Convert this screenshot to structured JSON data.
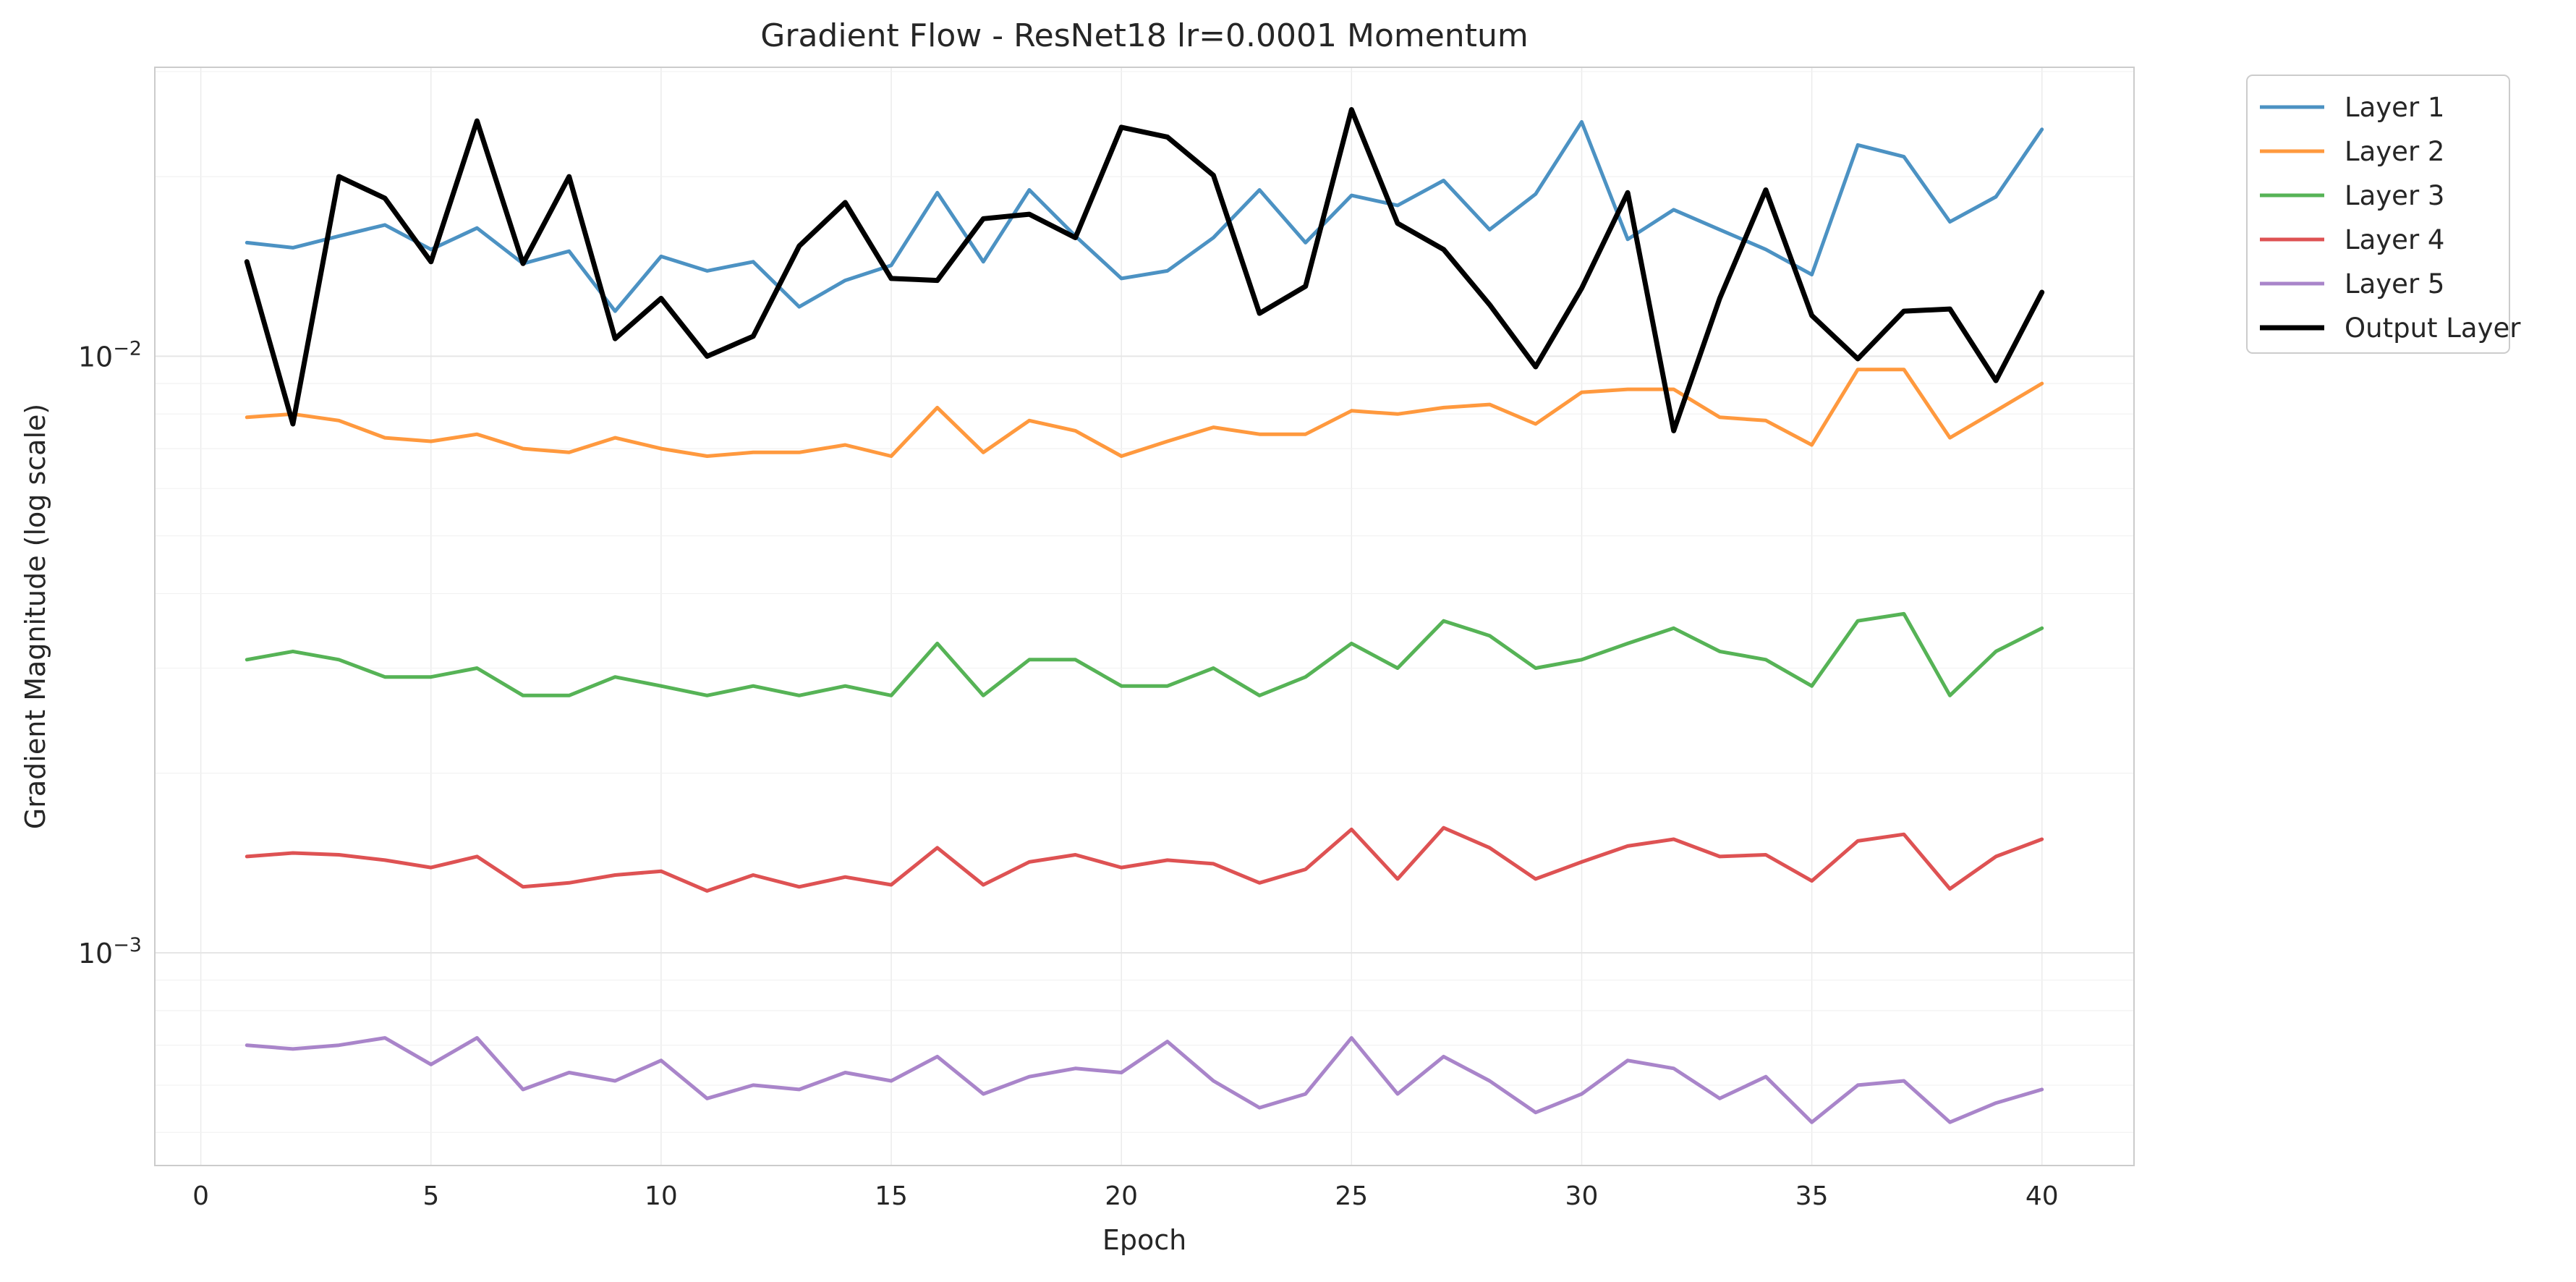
{
  "chart_data": {
    "type": "line",
    "title": "Gradient Flow - ResNet18 lr=0.0001 Momentum",
    "xlabel": "Epoch",
    "ylabel": "Gradient Magnitude (log scale)",
    "y_scale": "log",
    "xlim": [
      -1,
      42
    ],
    "ylim": [
      0.00044,
      0.0305
    ],
    "x_ticks": [
      0,
      5,
      10,
      15,
      20,
      25,
      30,
      35,
      40
    ],
    "y_ticks": [
      {
        "value": 0.01,
        "base": "10",
        "exp": "−2"
      },
      {
        "value": 0.001,
        "base": "10",
        "exp": "−3"
      }
    ],
    "grid": true,
    "legend_position": "outside-top-right",
    "x": [
      1,
      2,
      3,
      4,
      5,
      6,
      7,
      8,
      9,
      10,
      11,
      12,
      13,
      14,
      15,
      16,
      17,
      18,
      19,
      20,
      21,
      22,
      23,
      24,
      25,
      26,
      27,
      28,
      29,
      30,
      31,
      32,
      33,
      34,
      35,
      36,
      37,
      38,
      39,
      40
    ],
    "series": [
      {
        "name": "Layer 1",
        "color": "#1f77b4",
        "width": 5,
        "opacity": 0.8,
        "values": [
          0.0155,
          0.0152,
          0.0159,
          0.0166,
          0.0151,
          0.0164,
          0.0143,
          0.015,
          0.0119,
          0.0147,
          0.0139,
          0.0144,
          0.0121,
          0.0134,
          0.0142,
          0.0188,
          0.0144,
          0.019,
          0.0159,
          0.0135,
          0.0139,
          0.0158,
          0.019,
          0.0155,
          0.0186,
          0.0179,
          0.0197,
          0.0163,
          0.0187,
          0.0247,
          0.0157,
          0.0176,
          0.0163,
          0.0151,
          0.0137,
          0.0226,
          0.0216,
          0.0168,
          0.0185,
          0.024
        ]
      },
      {
        "name": "Layer 2",
        "color": "#ff7f0e",
        "width": 5,
        "opacity": 0.8,
        "values": [
          0.0079,
          0.008,
          0.0078,
          0.0073,
          0.0072,
          0.0074,
          0.007,
          0.0069,
          0.0073,
          0.007,
          0.0068,
          0.0069,
          0.0069,
          0.0071,
          0.0068,
          0.0082,
          0.0069,
          0.0078,
          0.0075,
          0.0068,
          0.0072,
          0.0076,
          0.0074,
          0.0074,
          0.0081,
          0.008,
          0.0082,
          0.0083,
          0.0077,
          0.0087,
          0.0088,
          0.0088,
          0.0079,
          0.0078,
          0.0071,
          0.0095,
          0.0095,
          0.0073,
          0.0081,
          0.009
        ]
      },
      {
        "name": "Layer 3",
        "color": "#2ca02c",
        "width": 5,
        "opacity": 0.8,
        "values": [
          0.0031,
          0.0032,
          0.0031,
          0.0029,
          0.0029,
          0.003,
          0.0027,
          0.0027,
          0.0029,
          0.0028,
          0.0027,
          0.0028,
          0.0027,
          0.0028,
          0.0027,
          0.0033,
          0.0027,
          0.0031,
          0.0031,
          0.0028,
          0.0028,
          0.003,
          0.0027,
          0.0029,
          0.0033,
          0.003,
          0.0036,
          0.0034,
          0.003,
          0.0031,
          0.0033,
          0.0035,
          0.0032,
          0.0031,
          0.0028,
          0.0036,
          0.0037,
          0.0027,
          0.0032,
          0.0035
        ]
      },
      {
        "name": "Layer 4",
        "color": "#d62728",
        "width": 5,
        "opacity": 0.8,
        "values": [
          0.00145,
          0.00147,
          0.00146,
          0.00143,
          0.00139,
          0.00145,
          0.00129,
          0.00131,
          0.00135,
          0.00137,
          0.00127,
          0.00135,
          0.00129,
          0.00134,
          0.0013,
          0.0015,
          0.0013,
          0.00142,
          0.00146,
          0.00139,
          0.00143,
          0.00141,
          0.00131,
          0.00138,
          0.00161,
          0.00133,
          0.00162,
          0.0015,
          0.00133,
          0.00142,
          0.00151,
          0.00155,
          0.00145,
          0.00146,
          0.00132,
          0.00154,
          0.00158,
          0.00128,
          0.00145,
          0.00155
        ]
      },
      {
        "name": "Layer 5",
        "color": "#9467bd",
        "width": 5,
        "opacity": 0.8,
        "values": [
          0.0007,
          0.00069,
          0.0007,
          0.00072,
          0.00065,
          0.00072,
          0.00059,
          0.00063,
          0.00061,
          0.00066,
          0.00057,
          0.0006,
          0.00059,
          0.00063,
          0.00061,
          0.00067,
          0.00058,
          0.00062,
          0.00064,
          0.00063,
          0.00071,
          0.00061,
          0.00055,
          0.00058,
          0.00072,
          0.00058,
          0.00067,
          0.00061,
          0.00054,
          0.00058,
          0.00066,
          0.00064,
          0.00057,
          0.00062,
          0.00052,
          0.0006,
          0.00061,
          0.00052,
          0.00056,
          0.00059
        ]
      },
      {
        "name": "Output Layer",
        "color": "#000000",
        "width": 7,
        "opacity": 1,
        "values": [
          0.0144,
          0.0077,
          0.02,
          0.0184,
          0.0144,
          0.0248,
          0.0143,
          0.02,
          0.0107,
          0.0125,
          0.01,
          0.0108,
          0.0153,
          0.0181,
          0.0135,
          0.0134,
          0.017,
          0.0173,
          0.0158,
          0.0242,
          0.0233,
          0.0201,
          0.0118,
          0.0131,
          0.0259,
          0.0167,
          0.0151,
          0.0122,
          0.0096,
          0.013,
          0.0188,
          0.0075,
          0.0125,
          0.019,
          0.0117,
          0.0099,
          0.0119,
          0.012,
          0.0091,
          0.0128
        ]
      }
    ]
  }
}
